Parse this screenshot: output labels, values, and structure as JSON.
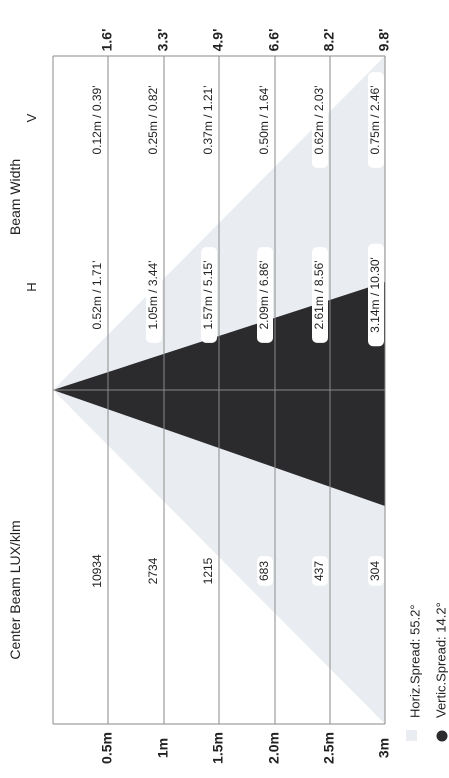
{
  "headers": {
    "center_beam": "Center Beam LUX/klm",
    "beam_width": "Beam Width",
    "h": "H",
    "v": "V"
  },
  "rows": [
    {
      "dist_m": "0.5m",
      "dist_ft": "1.6'",
      "lux": "10934",
      "h": "0.52m / 1.71'",
      "v": "0.12m / 0.39'"
    },
    {
      "dist_m": "1m",
      "dist_ft": "3.3'",
      "lux": "2734",
      "h": "1.05m / 3.44'",
      "v": "0.25m / 0.82'"
    },
    {
      "dist_m": "1.5m",
      "dist_ft": "4.9'",
      "lux": "1215",
      "h": "1.57m / 5.15'",
      "v": "0.37m / 1.21'"
    },
    {
      "dist_m": "2.0m",
      "dist_ft": "6.6'",
      "lux": "683",
      "h": "2.09m / 6.86'",
      "v": "0.50m / 1.64'"
    },
    {
      "dist_m": "2.5m",
      "dist_ft": "8.2'",
      "lux": "437",
      "h": "2.61m / 8.56'",
      "v": "0.62m / 2.03'"
    },
    {
      "dist_m": "3m",
      "dist_ft": "9.8'",
      "lux": "304",
      "h": "3.14m / 10.30'",
      "v": "0.75m / 2.46'"
    }
  ],
  "legend": {
    "horiz": "Horiz.Spread: 55.2°",
    "vertic": "Vertic.Spread: 14.2°"
  },
  "colors": {
    "horiz_cone": "#e9edf2",
    "vertic_cone": "#2b2b2d",
    "grid": "#8a8a8a"
  }
}
